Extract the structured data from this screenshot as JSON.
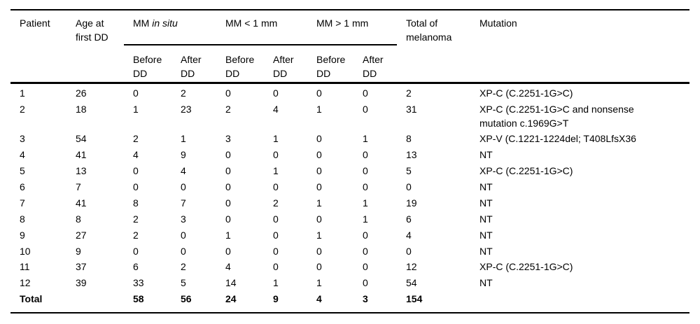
{
  "table": {
    "header": {
      "patient": "Patient",
      "age": "Age at first DD",
      "groups": [
        {
          "prefix": "MM",
          "italic": "in situ"
        },
        {
          "label": "MM < 1 mm"
        },
        {
          "label": "MM > 1 mm"
        }
      ],
      "sub": {
        "before": "Before DD",
        "after": "After DD"
      },
      "total": "Total of melanoma",
      "mutation": "Mutation"
    },
    "rows": [
      {
        "patient": "1",
        "age": "26",
        "insitu_before": "0",
        "insitu_after": "2",
        "lt1_before": "0",
        "lt1_after": "0",
        "gt1_before": "0",
        "gt1_after": "0",
        "total": "2",
        "mutation": "XP-C (C.2251-1G>C)"
      },
      {
        "patient": "2",
        "age": "18",
        "insitu_before": "1",
        "insitu_after": "23",
        "lt1_before": "2",
        "lt1_after": "4",
        "gt1_before": "1",
        "gt1_after": "0",
        "total": "31",
        "mutation": "XP-C (C.2251-1G>C and nonsense\nmutation c.1969G>T"
      },
      {
        "patient": "3",
        "age": "54",
        "insitu_before": "2",
        "insitu_after": "1",
        "lt1_before": "3",
        "lt1_after": "1",
        "gt1_before": "0",
        "gt1_after": "1",
        "total": "8",
        "mutation": "XP-V (C.1221-1224del; T408LfsX36"
      },
      {
        "patient": "4",
        "age": "41",
        "insitu_before": "4",
        "insitu_after": "9",
        "lt1_before": "0",
        "lt1_after": "0",
        "gt1_before": "0",
        "gt1_after": "0",
        "total": "13",
        "mutation": "NT"
      },
      {
        "patient": "5",
        "age": "13",
        "insitu_before": "0",
        "insitu_after": "4",
        "lt1_before": "0",
        "lt1_after": "1",
        "gt1_before": "0",
        "gt1_after": "0",
        "total": "5",
        "mutation": "XP-C (C.2251-1G>C)"
      },
      {
        "patient": "6",
        "age": "7",
        "insitu_before": "0",
        "insitu_after": "0",
        "lt1_before": "0",
        "lt1_after": "0",
        "gt1_before": "0",
        "gt1_after": "0",
        "total": "0",
        "mutation": "NT"
      },
      {
        "patient": "7",
        "age": "41",
        "insitu_before": "8",
        "insitu_after": "7",
        "lt1_before": "0",
        "lt1_after": "2",
        "gt1_before": "1",
        "gt1_after": "1",
        "total": "19",
        "mutation": "NT"
      },
      {
        "patient": "8",
        "age": "8",
        "insitu_before": "2",
        "insitu_after": "3",
        "lt1_before": "0",
        "lt1_after": "0",
        "gt1_before": "0",
        "gt1_after": "1",
        "total": "6",
        "mutation": "NT"
      },
      {
        "patient": "9",
        "age": "27",
        "insitu_before": "2",
        "insitu_after": "0",
        "lt1_before": "1",
        "lt1_after": "0",
        "gt1_before": "1",
        "gt1_after": "0",
        "total": "4",
        "mutation": "NT"
      },
      {
        "patient": "10",
        "age": "9",
        "insitu_before": "0",
        "insitu_after": "0",
        "lt1_before": "0",
        "lt1_after": "0",
        "gt1_before": "0",
        "gt1_after": "0",
        "total": "0",
        "mutation": "NT"
      },
      {
        "patient": "11",
        "age": "37",
        "insitu_before": "6",
        "insitu_after": "2",
        "lt1_before": "4",
        "lt1_after": "0",
        "gt1_before": "0",
        "gt1_after": "0",
        "total": "12",
        "mutation": "XP-C (C.2251-1G>C)"
      },
      {
        "patient": "12",
        "age": "39",
        "insitu_before": "33",
        "insitu_after": "5",
        "lt1_before": "14",
        "lt1_after": "1",
        "gt1_before": "1",
        "gt1_after": "0",
        "total": "54",
        "mutation": "NT"
      }
    ],
    "total_row": {
      "label": "Total",
      "age": "",
      "insitu_before": "58",
      "insitu_after": "56",
      "lt1_before": "24",
      "lt1_after": "9",
      "gt1_before": "4",
      "gt1_after": "3",
      "total": "154",
      "mutation": ""
    }
  }
}
